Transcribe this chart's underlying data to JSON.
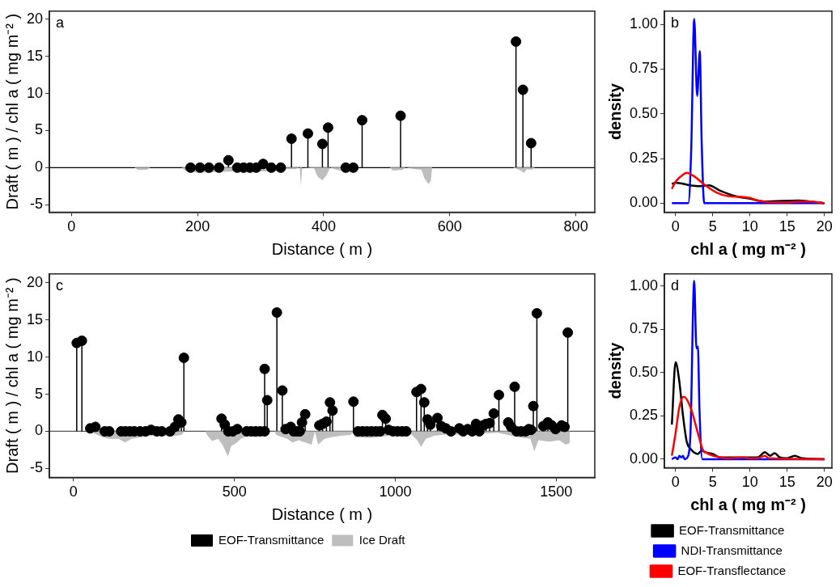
{
  "chart_data": [
    {
      "type": "lollipop",
      "xlabel": "Distance ( m )",
      "ylabel": "Draft ( m ) / chl a ( mg m⁻² )",
      "xlim": [
        -35,
        830
      ],
      "xticks": [
        0,
        200,
        400,
        600,
        800
      ],
      "ylim": [
        -6,
        21.1
      ],
      "yticks": [
        -5,
        0,
        5,
        10,
        15,
        20
      ],
      "grid": false,
      "annotations": [
        "a"
      ],
      "ref_lines": [
        {
          "axis": "y",
          "value": 0,
          "color": "#000000"
        }
      ],
      "series": [
        {
          "type": "area",
          "color": "#bebebe",
          "x": [
            0,
            100,
            105,
            120,
            125,
            175,
            180,
            200,
            230,
            260,
            300,
            330,
            340,
            355,
            362,
            364,
            366,
            385,
            390,
            398,
            405,
            410,
            420,
            435,
            450,
            455,
            505,
            510,
            525,
            530,
            545,
            555,
            560,
            566,
            570,
            572,
            700,
            710,
            718,
            722,
            730,
            735,
            800
          ],
          "values": [
            0,
            0,
            -0.3,
            -0.3,
            0,
            0,
            -0.4,
            -0.7,
            -0.6,
            -0.5,
            -0.5,
            -0.5,
            -0.2,
            -0.2,
            0,
            -2.5,
            0,
            -0.1,
            -1.2,
            -1.7,
            -1.0,
            0,
            -0.3,
            -0.5,
            -0.6,
            0,
            0,
            -0.4,
            -0.3,
            0,
            -0.2,
            -0.3,
            -1.5,
            -2.2,
            -1.8,
            0,
            0,
            -0.3,
            -0.7,
            -0.2,
            -0.3,
            0,
            0
          ]
        },
        {
          "type": "lollipop",
          "marker": "circle",
          "color": "#000000",
          "x": [
            189,
            204,
            218,
            234,
            249,
            263,
            273,
            283,
            293,
            304,
            317,
            332,
            349,
            375,
            398,
            407,
            435,
            447,
            461,
            522,
            705,
            716,
            729
          ],
          "values": [
            0,
            0,
            0,
            0,
            1.0,
            0,
            0,
            0,
            0,
            0.5,
            0,
            0,
            3.9,
            4.6,
            3.2,
            5.4,
            0,
            0,
            6.4,
            7.0,
            17.0,
            10.5,
            3.3
          ]
        }
      ]
    },
    {
      "type": "line",
      "xlabel": "chl a ( mg m⁻² )",
      "ylabel": "density",
      "xlim": [
        -1.5,
        21
      ],
      "xticks": [
        0,
        5,
        10,
        15,
        20
      ],
      "ylim": [
        -0.05,
        1.074
      ],
      "yticks": [
        {
          "value": 0,
          "label": "0.00"
        },
        {
          "value": 0.25,
          "label": "0.25"
        },
        {
          "value": 0.5,
          "label": "0.50"
        },
        {
          "value": 0.75,
          "label": "0.75"
        },
        {
          "value": 1,
          "label": "1.00"
        }
      ],
      "grid": false,
      "marker": "none",
      "annotations": [
        "b"
      ],
      "series": [
        {
          "color": "#000000",
          "x": [
            -0.5,
            0,
            2,
            3,
            4.5,
            6,
            8,
            10,
            12,
            14,
            16.5,
            18,
            20
          ],
          "values": [
            0.107,
            0.115,
            0.1,
            0.095,
            0.1,
            0.07,
            0.04,
            0.025,
            0.01,
            null,
            0.015,
            0.01,
            0
          ]
        },
        {
          "color": "#0000ff",
          "x": [
            -0.5,
            1.7,
            2.1,
            2.5,
            2.9,
            3.25,
            3.5,
            3.85,
            20
          ],
          "values": [
            0,
            0,
            0.3,
            1.03,
            0.6,
            0.85,
            0.35,
            0,
            0
          ]
        },
        {
          "color": "#ff0000",
          "x": [
            -0.5,
            0,
            1,
            1.5,
            2.5,
            4,
            5.5,
            7,
            9,
            10,
            11,
            13,
            15,
            17,
            18.5,
            20
          ],
          "values": [
            0.08,
            0.12,
            0.16,
            0.17,
            0.15,
            0.1,
            0.06,
            0.04,
            0.035,
            0.03,
            0.015,
            0.005,
            0.005,
            0.01,
            0.008,
            0
          ]
        }
      ]
    },
    {
      "type": "lollipop",
      "xlabel": "Distance ( m )",
      "ylabel": "Draft ( m ) / chl a ( mg m⁻² )",
      "xlim": [
        -75,
        1620
      ],
      "xticks": [
        0,
        500,
        1000,
        1500
      ],
      "ylim": [
        -6.2,
        21.2
      ],
      "yticks": [
        -5,
        0,
        5,
        10,
        15,
        20
      ],
      "grid": false,
      "legend": "bottom",
      "annotations": [
        "c"
      ],
      "ref_lines": [
        {
          "axis": "y",
          "value": 0,
          "color": "#555555"
        }
      ],
      "series": [
        {
          "type": "lollipop",
          "name": "EOF-Transmittance",
          "marker": "circle",
          "color": "#000000",
          "x": [
            10,
            26,
            52,
            68,
            97,
            111,
            148,
            161,
            175,
            189,
            207,
            224,
            241,
            259,
            274,
            300,
            315,
            326,
            335,
            343,
            460,
            470,
            481,
            495,
            509,
            538,
            552,
            566,
            580,
            594,
            594,
            602,
            632,
            649,
            659,
            675,
            684,
            694,
            703,
            710,
            720,
            764,
            774,
            786,
            797,
            805,
            870,
            884,
            898,
            912,
            926,
            940,
            953,
            960,
            970,
            979,
            993,
            1007,
            1021,
            1034,
            1066,
            1080,
            1090,
            1100,
            1109,
            1131,
            1143,
            1157,
            1173,
            1199,
            1211,
            1225,
            1239,
            1251,
            1261,
            1273,
            1282,
            1293,
            1306,
            1322,
            1351,
            1360,
            1371,
            1377,
            1391,
            1405,
            1415,
            1422,
            1429,
            1440,
            1460,
            1474,
            1486,
            1498,
            1517,
            1526,
            1536
          ],
          "values": [
            11.9,
            12.2,
            0.4,
            0.6,
            0,
            0,
            0,
            0,
            0,
            0,
            0,
            0,
            0.2,
            0,
            0,
            0,
            0.6,
            1.6,
            1.2,
            9.9,
            1.7,
            0.9,
            0,
            0,
            0.3,
            0,
            0,
            0,
            0,
            0,
            8.4,
            4.2,
            16.0,
            5.5,
            0.3,
            0.6,
            0,
            0,
            0,
            1.2,
            2.3,
            0.8,
            1.0,
            1.3,
            3.9,
            2.8,
            4.0,
            0,
            0,
            0,
            0,
            0,
            0,
            2.2,
            1.7,
            0.2,
            0,
            0,
            0,
            0,
            5.3,
            5.7,
            3.9,
            1.6,
            0.9,
            1.8,
            0.7,
            0.4,
            0,
            0.4,
            0,
            0.3,
            0,
            1.0,
            0,
            0.8,
            1.0,
            1.1,
            2.4,
            4.9,
            1.2,
            0.6,
            6.0,
            0,
            0,
            0,
            0.3,
            0.2,
            3.4,
            15.9,
            0.7,
            1.2,
            0.8,
            0.3,
            0.8,
            0.6,
            13.3
          ]
        },
        {
          "type": "area",
          "name": "Ice Draft",
          "color": "#bebebe",
          "x": [
            0,
            60,
            65,
            90,
            110,
            140,
            160,
            180,
            210,
            240,
            270,
            300,
            335,
            345,
            410,
            415,
            430,
            450,
            465,
            480,
            490,
            505,
            520,
            545,
            560,
            590,
            600,
            625,
            630,
            650,
            665,
            680,
            700,
            720,
            740,
            750,
            760,
            780,
            800,
            830,
            860,
            868,
            875,
            920,
            960,
            1000,
            1050,
            1068,
            1080,
            1095,
            1120,
            1160,
            1220,
            1270,
            1320,
            1350,
            1380,
            1420,
            1432,
            1445,
            1480,
            1510,
            1530,
            1540,
            1542,
            1600
          ],
          "values": [
            0,
            0,
            -0.3,
            -0.8,
            -1.0,
            -1.0,
            -1.5,
            -1.0,
            -0.8,
            -0.6,
            -0.5,
            -0.7,
            -0.5,
            0,
            0,
            -0.5,
            -1.3,
            -1.0,
            -2.0,
            -3.4,
            -2.0,
            -1.6,
            -1.0,
            -0.5,
            -0.8,
            -0.6,
            0,
            0,
            -0.5,
            -0.8,
            -1.0,
            -1.5,
            -1.2,
            -1.5,
            -1.8,
            0,
            -1.8,
            -1.0,
            -0.8,
            -0.6,
            -0.5,
            -0.2,
            -0.8,
            -0.9,
            -0.7,
            -0.5,
            -0.4,
            -1.2,
            -2.1,
            -1.0,
            -0.6,
            -0.4,
            -0.5,
            -0.3,
            -0.2,
            -0.5,
            -0.8,
            -1.0,
            -2.7,
            -1.2,
            -1.4,
            -1.2,
            -1.8,
            -1.6,
            0,
            0
          ]
        }
      ]
    },
    {
      "type": "line",
      "xlabel": "chl a ( mg m⁻² )",
      "ylabel": "density",
      "xlim": [
        -1.5,
        21
      ],
      "xticks": [
        0,
        5,
        10,
        15,
        20
      ],
      "ylim": [
        -0.049,
        1.07
      ],
      "yticks": [
        {
          "value": 0,
          "label": "0.00"
        },
        {
          "value": 0.25,
          "label": "0.25"
        },
        {
          "value": 0.5,
          "label": "0.50"
        },
        {
          "value": 0.75,
          "label": "0.75"
        },
        {
          "value": 1,
          "label": "1.00"
        }
      ],
      "grid": false,
      "marker": "none",
      "legend": "bottom",
      "annotations": [
        "d"
      ],
      "series": [
        {
          "name": "EOF-Transmittance",
          "color": "#000000",
          "x": [
            -0.5,
            0,
            0.5,
            1,
            1.5,
            2,
            3,
            3.5,
            4,
            5,
            6,
            7,
            8,
            10,
            11,
            12,
            12.7,
            13.3,
            14,
            15,
            16,
            17,
            20
          ],
          "values": [
            0.2,
            0.56,
            0.45,
            0.25,
            0.1,
            0.06,
            0.03,
            0.05,
            0.04,
            0.03,
            0.01,
            null,
            null,
            null,
            0.01,
            0.04,
            0.02,
            0.035,
            0.01,
            0.005,
            0.02,
            0.005,
            0
          ]
        },
        {
          "name": "NDI-Transmittance",
          "color": "#0000ff",
          "x": [
            -0.5,
            0,
            0.3,
            0.5,
            0.8,
            1,
            1.2,
            1.7,
            2,
            2.5,
            2.8,
            3,
            3.2,
            3.6,
            20
          ],
          "values": [
            0,
            0.01,
            0,
            0.02,
            0.01,
            0.02,
            0,
            0.02,
            0.15,
            1.03,
            0.64,
            0.65,
            0.3,
            0,
            0
          ]
        },
        {
          "name": "EOF-Transflectance",
          "color": "#ff0000",
          "x": [
            -0.5,
            0,
            0.5,
            1.1,
            2,
            3,
            3.7,
            4,
            5,
            6,
            7,
            9,
            10,
            11,
            12,
            12.5,
            20
          ],
          "values": [
            0.02,
            0.15,
            0.3,
            0.36,
            0.3,
            0.15,
            0.05,
            0.04,
            0.02,
            0.01,
            0.005,
            0.01,
            0.005,
            0.005,
            0.02,
            0.005,
            0
          ]
        }
      ]
    }
  ]
}
